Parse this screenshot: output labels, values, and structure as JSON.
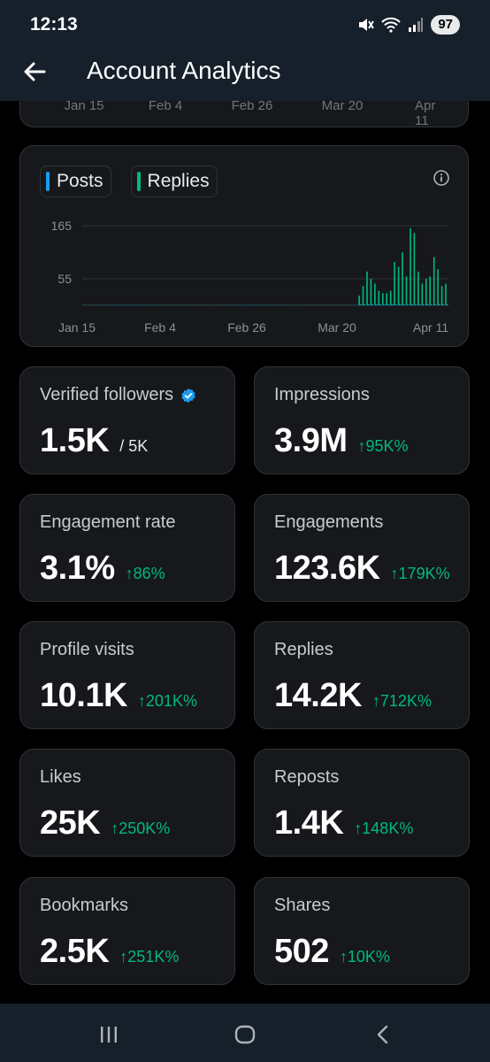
{
  "status_bar": {
    "time": "12:13",
    "battery": "97"
  },
  "header": {
    "title": "Account Analytics"
  },
  "previous_chart_axis": [
    "Jan 15",
    "Feb 4",
    "Feb 26",
    "Mar 20",
    "Apr 11"
  ],
  "chart_legend": {
    "posts": "Posts",
    "replies": "Replies"
  },
  "colors": {
    "posts": "#1d9bf0",
    "replies": "#00ba7c",
    "positive": "#00ba7c"
  },
  "chart_data": {
    "type": "bar",
    "series": [
      {
        "name": "Posts",
        "values": [
          0,
          0,
          0,
          0,
          0,
          0,
          0,
          0,
          0,
          0,
          0,
          0,
          0,
          0,
          0,
          0,
          0,
          0,
          0,
          0,
          0,
          0,
          0,
          0,
          0,
          0,
          0,
          0,
          0,
          0,
          0,
          0,
          0,
          0,
          0,
          0,
          0,
          0,
          0,
          0,
          0,
          0,
          0,
          0,
          0,
          0,
          0,
          0,
          0,
          0,
          0,
          0,
          0,
          0,
          0,
          0,
          0,
          0,
          0,
          0,
          0,
          0,
          0,
          0,
          0,
          0,
          0,
          0,
          0,
          0,
          2,
          2,
          2,
          3,
          2,
          2,
          2,
          2,
          3,
          2,
          3,
          2,
          2,
          3,
          2,
          2,
          2,
          3,
          2,
          2,
          3,
          2,
          2
        ]
      },
      {
        "name": "Replies",
        "values": [
          0,
          0,
          0,
          0,
          0,
          0,
          0,
          0,
          0,
          0,
          0,
          0,
          0,
          0,
          0,
          0,
          0,
          0,
          0,
          0,
          0,
          0,
          0,
          0,
          0,
          0,
          0,
          0,
          0,
          0,
          0,
          0,
          0,
          0,
          0,
          0,
          0,
          0,
          0,
          0,
          0,
          0,
          0,
          0,
          0,
          0,
          0,
          0,
          0,
          0,
          0,
          0,
          0,
          0,
          0,
          0,
          0,
          0,
          0,
          0,
          0,
          0,
          0,
          0,
          0,
          0,
          0,
          0,
          0,
          0,
          20,
          40,
          70,
          55,
          45,
          30,
          25,
          25,
          30,
          90,
          80,
          110,
          60,
          160,
          150,
          70,
          45,
          55,
          60,
          100,
          75,
          40,
          45
        ]
      }
    ],
    "x_tick_labels": [
      "Jan 15",
      "Feb 4",
      "Feb 26",
      "Mar 20",
      "Apr 11"
    ],
    "y_tick_labels": [
      "165",
      "55"
    ],
    "y_ticks": [
      165,
      55
    ],
    "ylim": [
      0,
      180
    ],
    "grid": true
  },
  "stats": [
    {
      "label": "Verified followers",
      "value": "1.5K",
      "sub": "/ 5K",
      "change": "",
      "verified": true
    },
    {
      "label": "Impressions",
      "value": "3.9M",
      "change": "95K%"
    },
    {
      "label": "Engagement rate",
      "value": "3.1%",
      "change": "86%"
    },
    {
      "label": "Engagements",
      "value": "123.6K",
      "change": "179K%"
    },
    {
      "label": "Profile visits",
      "value": "10.1K",
      "change": "201K%"
    },
    {
      "label": "Replies",
      "value": "14.2K",
      "change": "712K%"
    },
    {
      "label": "Likes",
      "value": "25K",
      "change": "250K%"
    },
    {
      "label": "Reposts",
      "value": "1.4K",
      "change": "148K%"
    },
    {
      "label": "Bookmarks",
      "value": "2.5K",
      "change": "251K%"
    },
    {
      "label": "Shares",
      "value": "502",
      "change": "10K%"
    }
  ],
  "change_arrow": "↑",
  "nav": {
    "recents": "recents-icon",
    "home": "home-icon",
    "back": "back-icon"
  }
}
